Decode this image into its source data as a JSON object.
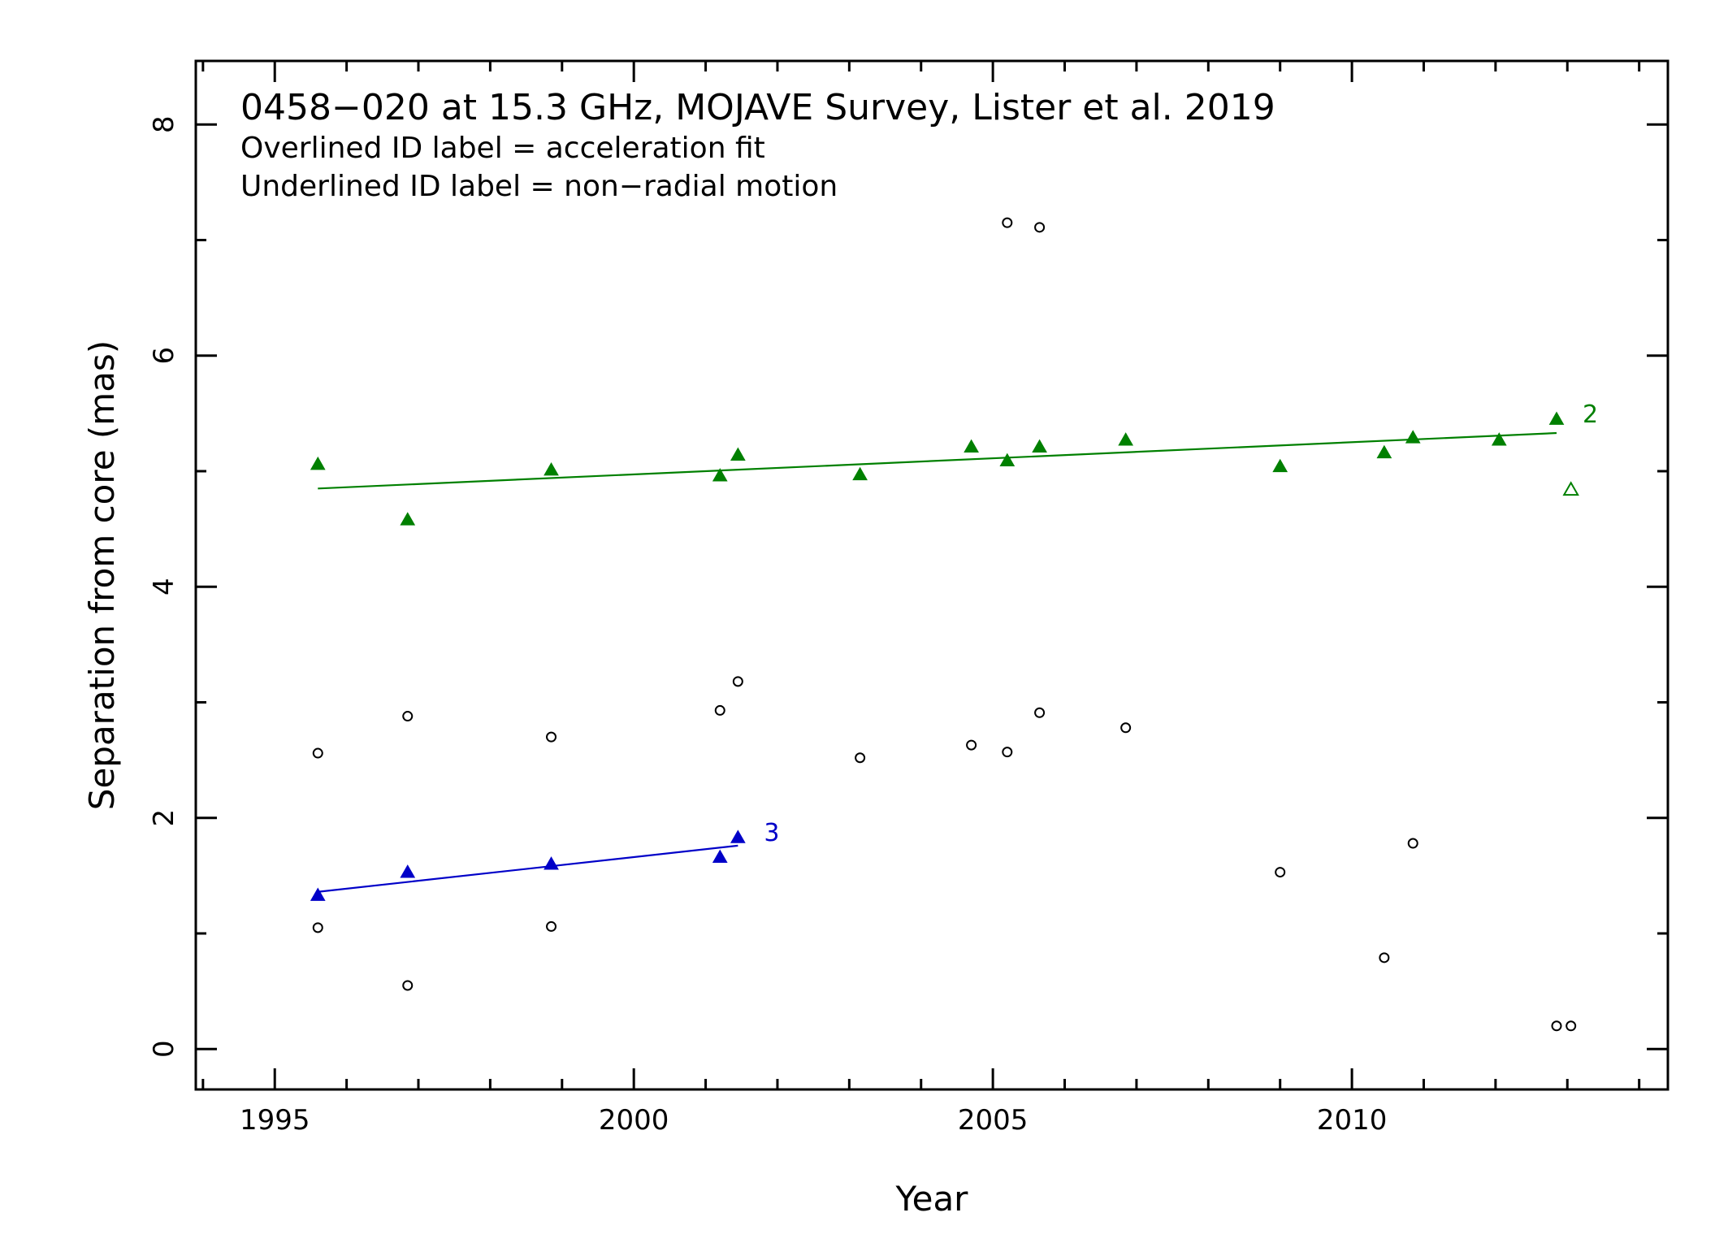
{
  "chart_data": {
    "type": "scatter",
    "title": "0458−020 at 15.3 GHz, MOJAVE Survey, Lister et al. 2019",
    "annotations": [
      "Overlined ID label = acceleration fit",
      "Underlined ID label = non−radial motion"
    ],
    "xlabel": "Year",
    "ylabel": "Separation from core (mas)",
    "xlim": [
      1993.9,
      2014.4
    ],
    "ylim": [
      -0.35,
      8.55
    ],
    "xticks_major": [
      1995,
      2000,
      2005,
      2010
    ],
    "xtick_labels": [
      "1995",
      "2000",
      "2005",
      "2010"
    ],
    "yticks_major": [
      0,
      2,
      4,
      6,
      8
    ],
    "ytick_labels": [
      "0",
      "2",
      "4",
      "6",
      "8"
    ],
    "grid": false,
    "legend": "none",
    "series": [
      {
        "id_label": "2",
        "color": "#008000",
        "marker": "filled-triangle",
        "points": [
          [
            1995.6,
            5.06
          ],
          [
            1996.85,
            4.58
          ],
          [
            1998.85,
            5.01
          ],
          [
            2001.2,
            4.96
          ],
          [
            2001.45,
            5.14
          ],
          [
            2003.15,
            4.97
          ],
          [
            2004.7,
            5.21
          ],
          [
            2005.2,
            5.09
          ],
          [
            2005.65,
            5.21
          ],
          [
            2006.85,
            5.27
          ],
          [
            2009.0,
            5.04
          ],
          [
            2010.45,
            5.16
          ],
          [
            2010.85,
            5.29
          ],
          [
            2012.05,
            5.27
          ],
          [
            2012.85,
            5.45
          ]
        ],
        "open_points": [
          [
            2013.05,
            4.84
          ]
        ],
        "fit": [
          [
            1995.6,
            4.85
          ],
          [
            2012.85,
            5.33
          ]
        ]
      },
      {
        "id_label": "3",
        "color": "#0000c8",
        "marker": "filled-triangle",
        "points": [
          [
            1995.6,
            1.33
          ],
          [
            1996.85,
            1.53
          ],
          [
            1998.85,
            1.6
          ],
          [
            2001.2,
            1.66
          ],
          [
            2001.45,
            1.83
          ]
        ],
        "fit": [
          [
            1995.6,
            1.36
          ],
          [
            2001.45,
            1.76
          ]
        ]
      },
      {
        "color": "#000000",
        "marker": "open-circle",
        "points": [
          [
            1995.6,
            2.56
          ],
          [
            1995.6,
            1.05
          ],
          [
            1996.85,
            2.88
          ],
          [
            1996.85,
            0.55
          ],
          [
            1998.85,
            2.7
          ],
          [
            1998.85,
            1.06
          ],
          [
            2001.2,
            2.93
          ],
          [
            2001.45,
            3.18
          ],
          [
            2003.15,
            2.52
          ],
          [
            2004.7,
            2.63
          ],
          [
            2005.2,
            7.15
          ],
          [
            2005.2,
            2.57
          ],
          [
            2005.65,
            7.11
          ],
          [
            2005.65,
            2.91
          ],
          [
            2006.85,
            2.78
          ],
          [
            2009.0,
            1.53
          ],
          [
            2010.45,
            0.79
          ],
          [
            2010.85,
            1.78
          ],
          [
            2012.85,
            0.2
          ],
          [
            2013.05,
            0.2
          ]
        ]
      }
    ]
  }
}
